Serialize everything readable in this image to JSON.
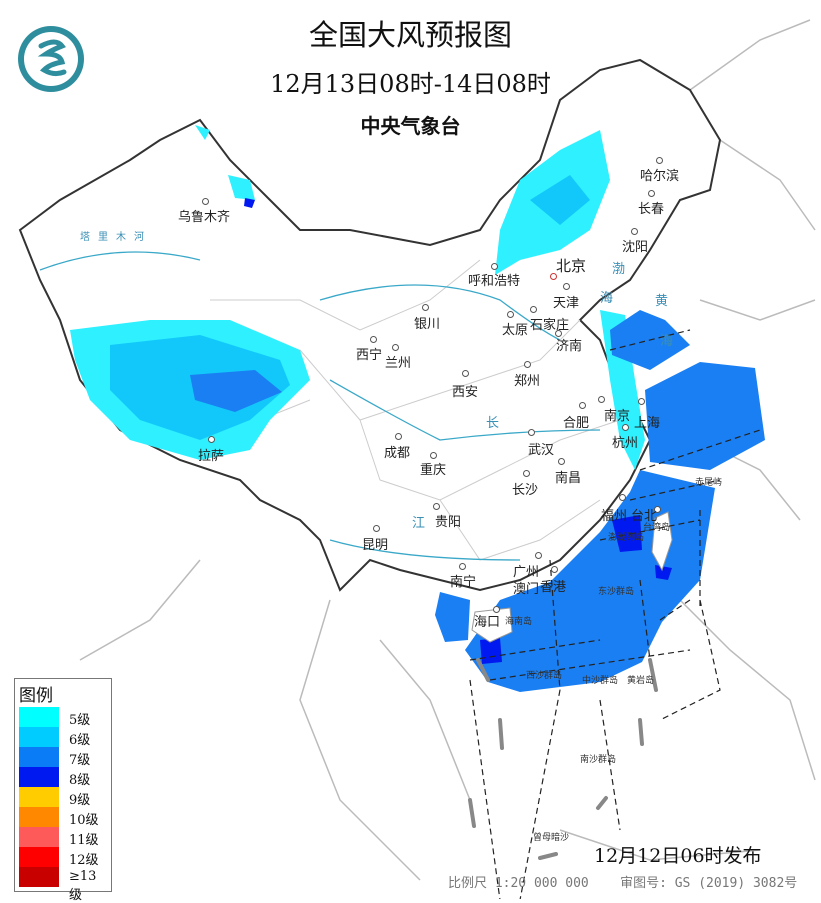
{
  "header": {
    "title": "全国大风预报图",
    "period": "12月13日08时-14日08时",
    "issuer": "中央气象台"
  },
  "legend": {
    "title": "图例",
    "items": [
      {
        "label": "5级",
        "color": "#00ffff"
      },
      {
        "label": "6级",
        "color": "#00ccff"
      },
      {
        "label": "7级",
        "color": "#0a7cf5"
      },
      {
        "label": "8级",
        "color": "#0019f0"
      },
      {
        "label": "9级",
        "color": "#ffcc00"
      },
      {
        "label": "10级",
        "color": "#ff8800"
      },
      {
        "label": "11级",
        "color": "#ff5a5a"
      },
      {
        "label": "12级",
        "color": "#ff0000"
      },
      {
        "label": "≥13级",
        "color": "#c80000"
      }
    ]
  },
  "cities": [
    "乌鲁木齐",
    "哈尔滨",
    "长春",
    "沈阳",
    "北京",
    "呼和浩特",
    "天津",
    "石家庄",
    "太原",
    "济南",
    "银川",
    "西宁",
    "兰州",
    "西安",
    "郑州",
    "合肥",
    "南京",
    "上海",
    "杭州",
    "武汉",
    "拉萨",
    "成都",
    "重庆",
    "长沙",
    "南昌",
    "贵阳",
    "昆明",
    "福州",
    "台北",
    "南宁",
    "广州",
    "香港",
    "澳门",
    "海口"
  ],
  "islands": [
    "台湾岛",
    "澎湖列岛",
    "东沙群岛",
    "海南岛",
    "西沙群岛",
    "中沙群岛",
    "黄岩岛",
    "南沙群岛",
    "曾母暗沙",
    "赤尾屿"
  ],
  "water_labels": [
    "渤",
    "海",
    "黄",
    "海",
    "塔里木河",
    "长",
    "江"
  ],
  "footer": {
    "issued": "12月12日06时发布",
    "scale": "比例尺 1:20 000 000",
    "review_number": "审图号: GS (2019) 3082号"
  }
}
